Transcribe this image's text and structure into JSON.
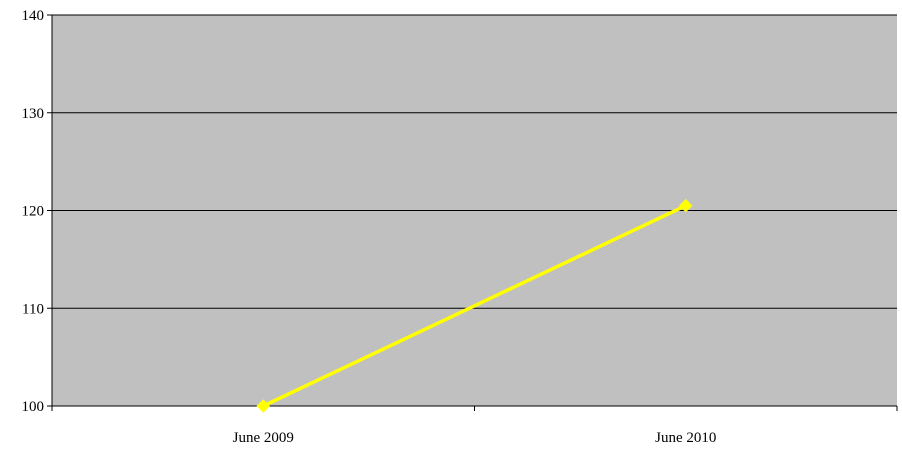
{
  "chart_data": {
    "type": "line",
    "title": "",
    "xlabel": "",
    "ylabel": "",
    "categories": [
      "June 2009",
      "June 2010"
    ],
    "series": [
      {
        "values": [
          100,
          120.5
        ],
        "color": "#ffff00",
        "marker": "diamond"
      }
    ],
    "ylim": [
      100,
      140
    ],
    "yticks": [
      "100",
      "110",
      "120",
      "130",
      "140"
    ],
    "grid": true,
    "legend": "none",
    "plot_background": "#c0c0c0",
    "gridline_color": "#000000"
  }
}
